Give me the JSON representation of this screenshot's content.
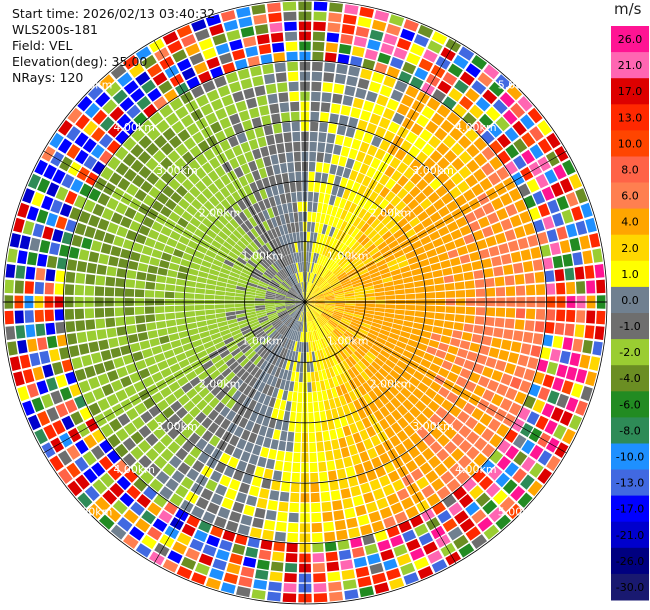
{
  "header": {
    "start_time": "Start time: 2026/02/13 03:40:32",
    "instrument": "WLS200s-181",
    "field": "Field: VEL",
    "elevation": "Elevation(deg): 35.00",
    "nrays": "NRays: 120"
  },
  "colorbar": {
    "unit": "m/s",
    "ticks": [
      "26.0",
      "21.0",
      "17.0",
      "13.0",
      "10.0",
      "8.0",
      "6.0",
      "4.0",
      "2.0",
      "1.0",
      "0.0",
      "-1.0",
      "-2.0",
      "-4.0",
      "-6.0",
      "-8.0",
      "-10.0",
      "-13.0",
      "-17.0",
      "-21.0",
      "-26.0",
      "-30.0"
    ],
    "colors": [
      "#ff1493",
      "#ff66b2",
      "#dd0000",
      "#ff2800",
      "#ff4500",
      "#ff6347",
      "#ff7f50",
      "#ffa500",
      "#ffd700",
      "#ffff00",
      "#708090",
      "#6e6e6e",
      "#9acd32",
      "#6b8e23",
      "#228b22",
      "#2e8b57",
      "#1e90ff",
      "#4169e1",
      "#0000ff",
      "#0000cd",
      "#000080",
      "#191970"
    ]
  },
  "chart_data": {
    "type": "ppi",
    "title": "",
    "nrays": 120,
    "max_range_km": 5.0,
    "range_rings_km": [
      1.0,
      2.0,
      3.0,
      4.0,
      5.0
    ],
    "ring_labels": [
      "1.00km",
      "2.00km",
      "3.00km",
      "4.00km",
      "5.00km"
    ],
    "radial_velocity_summary": {
      "east_sector_approx_ms": 4.0,
      "west_sector_approx_ms": -6.0,
      "near_field_min_ms": -2.0,
      "near_field_max_ms": 1.0,
      "outer_range_noise": true
    },
    "colorbar_range": [
      -30.0,
      26.0
    ]
  }
}
